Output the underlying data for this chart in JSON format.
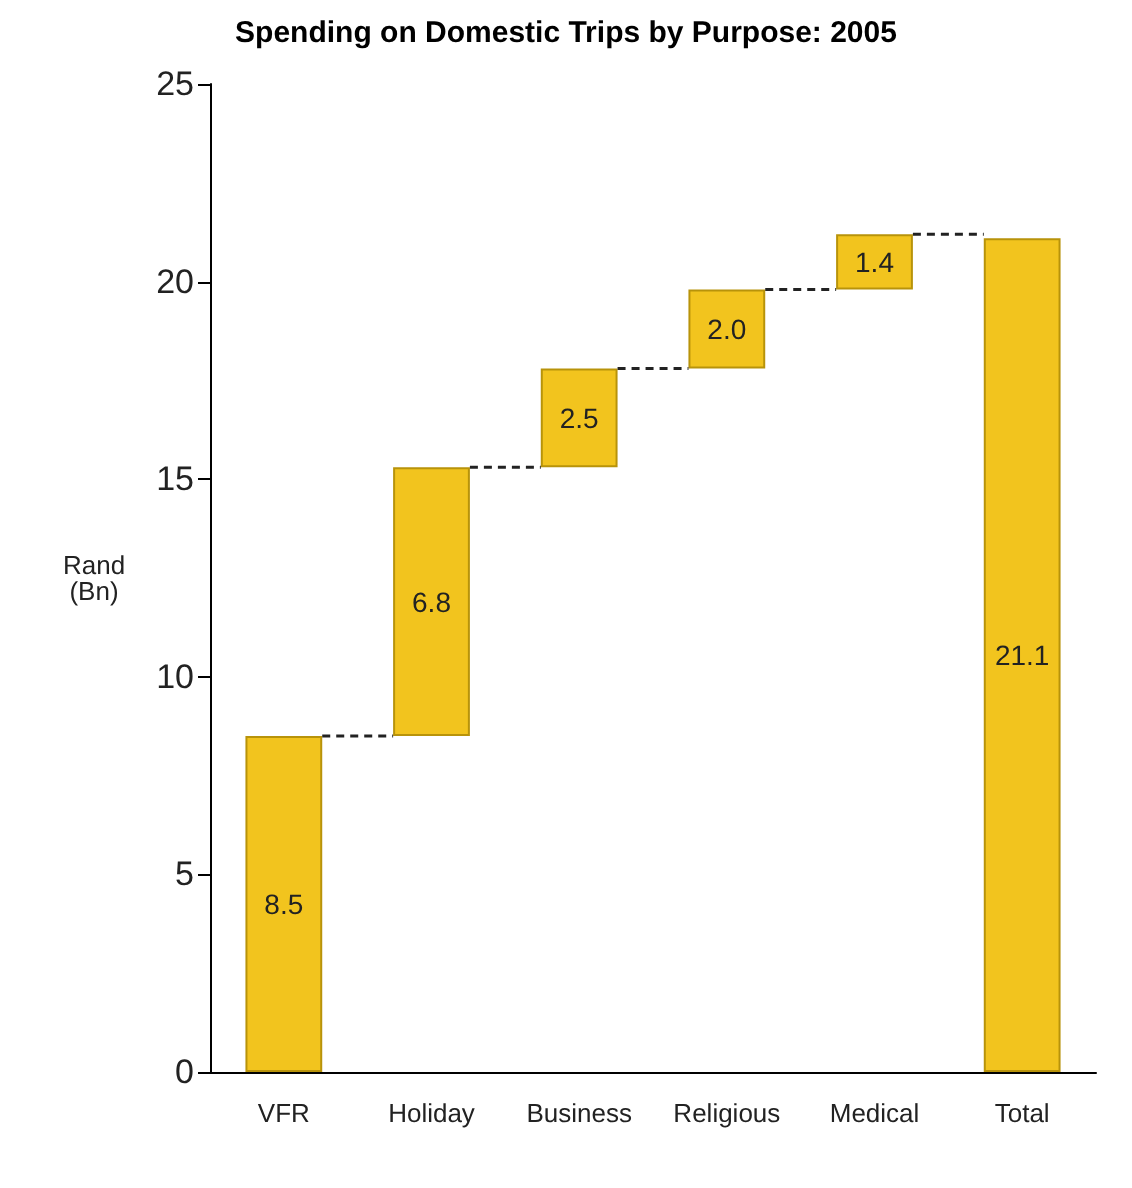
{
  "chart_data": {
    "type": "bar",
    "title": "Spending on Domestic Trips by Purpose: 2005",
    "ylabel": "Rand (Bn)",
    "categories": [
      "VFR",
      "Holiday",
      "Business",
      "Religious",
      "Medical",
      "Total"
    ],
    "values": [
      8.5,
      6.8,
      2.5,
      2.0,
      1.4,
      21.1
    ],
    "base": [
      0,
      8.5,
      15.3,
      17.8,
      19.8,
      0
    ],
    "value_labels": [
      "8.5",
      "6.8",
      "2.5",
      "2.0",
      "1.4",
      "21.1"
    ],
    "color": "#f2c41e",
    "ylim": [
      0,
      25
    ],
    "yticks": [
      0,
      5,
      10,
      15,
      20,
      25
    ],
    "grid": false
  }
}
